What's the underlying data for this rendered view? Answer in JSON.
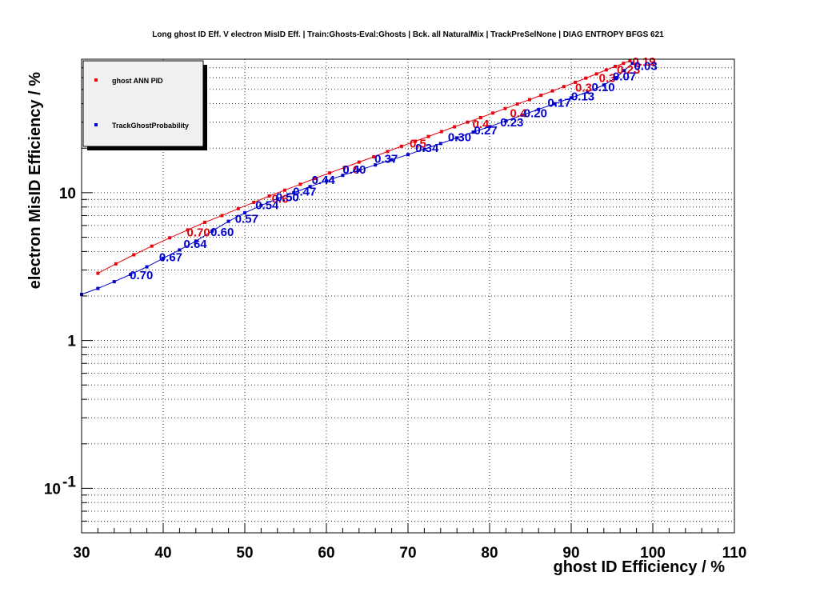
{
  "chart_data": {
    "type": "line",
    "title": "Long ghost ID Eff. V electron MisID Eff. | Train:Ghosts-Eval:Ghosts | Bck. all NaturalMix | TrackPreSelNone | DIAG ENTROPY BFGS 621",
    "xlabel": "ghost ID Efficiency / %",
    "ylabel": "electron MisID Efficiency / %",
    "xlim": [
      30,
      110
    ],
    "ylim": [
      0.05,
      80
    ],
    "y_scale": "log",
    "grid": true,
    "legend_position": "top-left",
    "x_ticks": [
      "30",
      "40",
      "50",
      "60",
      "70",
      "80",
      "90",
      "100",
      "110"
    ],
    "y_ticks": [
      {
        "value": 0.1,
        "base": "10",
        "exp": "-1"
      },
      {
        "value": 1,
        "base": "1",
        "exp": ""
      },
      {
        "value": 10,
        "base": "10",
        "exp": ""
      }
    ],
    "series": [
      {
        "name": "ghost ANN PID",
        "color": "#e8000b",
        "x": [
          32.0,
          34.2,
          36.4,
          38.6,
          40.8,
          43.0,
          45.1,
          47.2,
          49.2,
          51.1,
          53.0,
          54.9,
          56.8,
          58.6,
          60.4,
          62.2,
          64.0,
          65.8,
          67.5,
          69.2,
          70.9,
          72.5,
          74.1,
          75.7,
          77.3,
          78.9,
          80.4,
          81.9,
          83.4,
          84.9,
          86.3,
          87.7,
          89.1,
          90.5,
          91.8,
          93.1,
          94.3,
          95.4,
          96.4,
          97.2
        ],
        "y": [
          2.85,
          3.3,
          3.8,
          4.35,
          4.95,
          5.6,
          6.3,
          7.0,
          7.8,
          8.6,
          9.5,
          10.4,
          11.4,
          12.5,
          13.6,
          14.8,
          16.1,
          17.5,
          19.0,
          20.6,
          22.3,
          24.0,
          25.9,
          27.9,
          30.0,
          32.2,
          34.6,
          37.1,
          39.8,
          42.6,
          45.6,
          48.8,
          52.2,
          55.8,
          59.6,
          63.6,
          67.7,
          71.5,
          75.0,
          78.0
        ]
      },
      {
        "name": "TrackGhostProbability",
        "color": "#0000cc",
        "x": [
          30.0,
          32.0,
          34.0,
          36.0,
          38.0,
          40.0,
          42.0,
          44.0,
          46.0,
          48.0,
          50.0,
          52.0,
          54.0,
          56.0,
          58.0,
          60.0,
          62.0,
          64.0,
          66.0,
          68.0,
          70.0,
          72.0,
          74.0,
          76.0,
          78.0,
          80.0,
          82.0,
          84.0,
          86.0,
          88.0,
          90.0,
          92.0,
          94.0,
          95.5,
          96.5,
          97.5
        ],
        "y": [
          2.05,
          2.25,
          2.5,
          2.8,
          3.15,
          3.6,
          4.1,
          4.7,
          5.5,
          6.4,
          7.3,
          8.2,
          9.1,
          10.0,
          11.0,
          12.0,
          13.1,
          14.2,
          15.4,
          16.7,
          18.1,
          19.7,
          21.5,
          23.5,
          25.7,
          28.0,
          30.6,
          33.5,
          36.6,
          40.0,
          43.8,
          48.0,
          53.5,
          60.0,
          67.0,
          75.0
        ]
      }
    ],
    "annotations": [
      {
        "text": "0.19",
        "series": 0,
        "x": 97.2,
        "y": 78.0
      },
      {
        "text": "0.23",
        "series": 0,
        "x": 95.3,
        "y": 69.0
      },
      {
        "text": "0.3",
        "series": 0,
        "x": 93.1,
        "y": 60.5
      },
      {
        "text": "0.3",
        "series": 0,
        "x": 90.2,
        "y": 52.0
      },
      {
        "text": "0.4",
        "series": 0,
        "x": 82.2,
        "y": 35.0
      },
      {
        "text": "0.4",
        "series": 0,
        "x": 77.6,
        "y": 29.5
      },
      {
        "text": "0.5",
        "series": 0,
        "x": 69.9,
        "y": 21.8
      },
      {
        "text": "0.6",
        "series": 0,
        "x": 61.7,
        "y": 14.5
      },
      {
        "text": "0.6",
        "series": 0,
        "x": 53.0,
        "y": 9.2
      },
      {
        "text": "0.70",
        "series": 0,
        "x": 42.6,
        "y": 5.45
      },
      {
        "text": "0.03",
        "series": 1,
        "x": 97.4,
        "y": 73.0
      },
      {
        "text": "0.07",
        "series": 1,
        "x": 94.8,
        "y": 62.0
      },
      {
        "text": "0.10",
        "series": 1,
        "x": 92.2,
        "y": 52.5
      },
      {
        "text": "0.13",
        "series": 1,
        "x": 89.7,
        "y": 45.5
      },
      {
        "text": "0.17",
        "series": 1,
        "x": 86.8,
        "y": 41.0
      },
      {
        "text": "0.20",
        "series": 1,
        "x": 83.9,
        "y": 35.0
      },
      {
        "text": "0.23",
        "series": 1,
        "x": 81.0,
        "y": 30.2
      },
      {
        "text": "0.27",
        "series": 1,
        "x": 77.8,
        "y": 26.8
      },
      {
        "text": "0.30",
        "series": 1,
        "x": 74.6,
        "y": 24.0
      },
      {
        "text": "0.34",
        "series": 1,
        "x": 70.6,
        "y": 20.3
      },
      {
        "text": "0.37",
        "series": 1,
        "x": 65.6,
        "y": 17.2
      },
      {
        "text": "0.40",
        "series": 1,
        "x": 61.7,
        "y": 14.5
      },
      {
        "text": "0.44",
        "series": 1,
        "x": 57.9,
        "y": 12.3
      },
      {
        "text": "0.47",
        "series": 1,
        "x": 55.6,
        "y": 10.3
      },
      {
        "text": "0.50",
        "series": 1,
        "x": 53.5,
        "y": 9.45
      },
      {
        "text": "0.54",
        "series": 1,
        "x": 51.0,
        "y": 8.35
      },
      {
        "text": "0.57",
        "series": 1,
        "x": 48.5,
        "y": 6.75
      },
      {
        "text": "0.60",
        "series": 1,
        "x": 45.5,
        "y": 5.5
      },
      {
        "text": "0.64",
        "series": 1,
        "x": 42.2,
        "y": 4.55
      },
      {
        "text": "0.67",
        "series": 1,
        "x": 39.2,
        "y": 3.7
      },
      {
        "text": "0.70",
        "series": 1,
        "x": 35.6,
        "y": 2.8
      }
    ]
  }
}
